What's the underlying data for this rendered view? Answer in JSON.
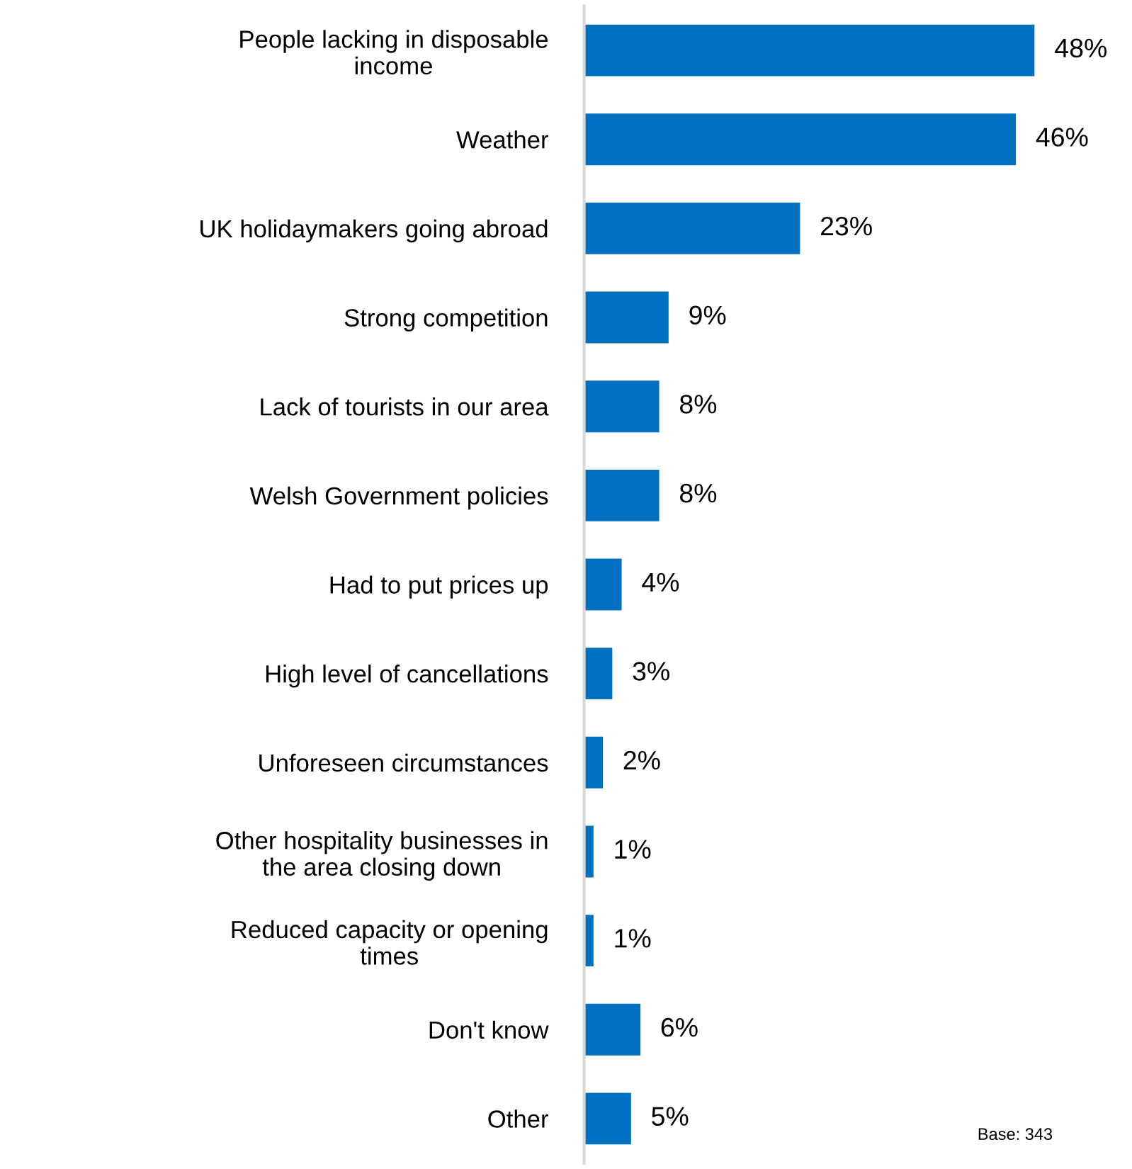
{
  "chart_data": {
    "type": "bar",
    "orientation": "horizontal",
    "categories": [
      "People lacking in disposable\nincome",
      "Weather",
      "UK holidaymakers going abroad",
      "Strong competition",
      "Lack of tourists in our area",
      "Welsh Government policies",
      "Had to put prices up",
      "High level of cancellations",
      "Unforeseen circumstances",
      "Other hospitality businesses in\nthe area closing down",
      "Reduced capacity or opening\ntimes",
      "Don't know",
      "Other"
    ],
    "values": [
      48,
      46,
      23,
      9,
      8,
      8,
      4,
      3,
      2,
      1,
      1,
      6,
      5
    ],
    "value_labels": [
      "48%",
      "46%",
      "23%",
      "9%",
      "8%",
      "8%",
      "4%",
      "3%",
      "2%",
      "1%",
      "1%",
      "6%",
      "5%"
    ],
    "color": "#0070c0",
    "tick_labels": "y",
    "grid": false,
    "legend": false,
    "annotations": [
      "Base: 343"
    ]
  }
}
